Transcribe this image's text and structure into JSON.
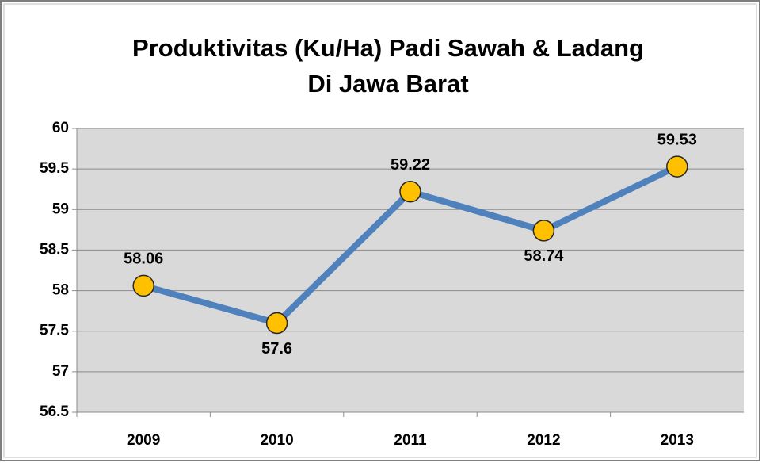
{
  "chart_data": {
    "type": "line",
    "title": [
      "Produktivitas (Ku/Ha) Padi Sawah & Ladang",
      "Di Jawa Barat"
    ],
    "categories": [
      "2009",
      "2010",
      "2011",
      "2012",
      "2013"
    ],
    "series": [
      {
        "color": "#4f81bd",
        "marker_color": "#ffc000",
        "values": [
          58.06,
          57.6,
          59.22,
          58.74,
          59.53
        ]
      }
    ],
    "ylim": [
      56.5,
      60
    ],
    "yticks": [
      56.5,
      57,
      57.5,
      58,
      58.5,
      59,
      59.5,
      60
    ],
    "grid": true,
    "plot_background": "#d9d9d9"
  }
}
